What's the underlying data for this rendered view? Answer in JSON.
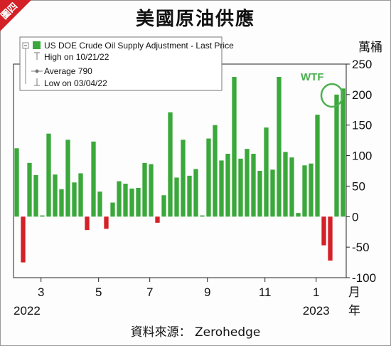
{
  "corner_label": "圖四",
  "title": "美國原油供應",
  "source": "資料來源： Zerohedge",
  "colors": {
    "positive": "#3aa83a",
    "negative": "#d42027",
    "accent": "#d42027",
    "highlight_ring": "#4caf50"
  },
  "chart_data": {
    "type": "bar",
    "title": "美國原油供應",
    "ylabel": "萬桶",
    "xlabel": "月年",
    "ylim": [
      -100,
      250
    ],
    "grid": false,
    "legend_position": "top-left",
    "legend": {
      "series_name": "US DOE Crude Oil Supply Adjustment - Last Price",
      "high": "High on 10/21/22",
      "average": "Average 790",
      "low": "Low on 03/04/22"
    },
    "annotation": "WTF",
    "y_ticks": [
      250,
      200,
      150,
      100,
      50,
      0,
      -50,
      -100
    ],
    "x_tick_labels": [
      "3",
      "5",
      "7",
      "9",
      "11",
      "1"
    ],
    "x_year_labels": [
      "2022",
      "2023"
    ],
    "x_unit_label": [
      "月",
      "年"
    ],
    "values": [
      112,
      -75,
      88,
      68,
      2,
      136,
      69,
      45,
      126,
      56,
      71,
      -22,
      123,
      41,
      -20,
      23,
      58,
      54,
      46,
      47,
      88,
      86,
      -10,
      35,
      171,
      64,
      126,
      67,
      78,
      2,
      128,
      150,
      92,
      103,
      229,
      95,
      111,
      103,
      75,
      146,
      77,
      229,
      106,
      97,
      6,
      84,
      87,
      167,
      -47,
      -72,
      200,
      210
    ]
  }
}
